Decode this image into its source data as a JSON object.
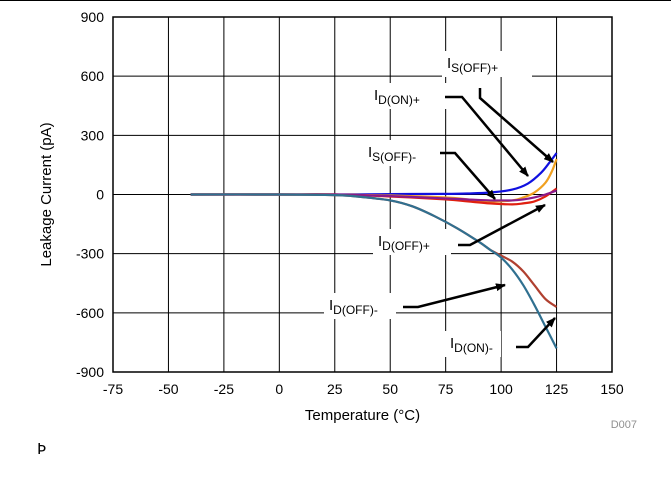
{
  "chart_data": {
    "type": "line",
    "title": "",
    "xlabel": "Temperature (°C)",
    "ylabel": "Leakage Current (pA)",
    "xlim": [
      -75,
      150
    ],
    "ylim": [
      -900,
      900
    ],
    "xticks": [
      -75,
      -50,
      -25,
      0,
      25,
      50,
      75,
      100,
      125,
      150
    ],
    "yticks": [
      900,
      600,
      300,
      0,
      -300,
      -600,
      -900
    ],
    "grid": true,
    "legend": "none",
    "series": [
      {
        "name": "I_S(OFF)+",
        "color": "#1010e0",
        "x": [
          -40,
          0,
          25,
          50,
          75,
          85,
          95,
          105,
          112,
          118,
          122,
          125
        ],
        "y": [
          0,
          0,
          0,
          2,
          3,
          5,
          10,
          25,
          55,
          110,
          165,
          210
        ]
      },
      {
        "name": "I_D(ON)+",
        "color": "#f0a020",
        "x": [
          -40,
          0,
          25,
          50,
          75,
          85,
          95,
          105,
          110,
          115,
          120,
          123,
          125
        ],
        "y": [
          0,
          0,
          0,
          -5,
          -15,
          -25,
          -35,
          -30,
          -15,
          10,
          60,
          120,
          180
        ]
      },
      {
        "name": "I_S(OFF)-",
        "color": "#e02010",
        "x": [
          -40,
          0,
          25,
          50,
          75,
          85,
          95,
          105,
          110,
          115,
          120,
          125
        ],
        "y": [
          0,
          0,
          0,
          -10,
          -25,
          -35,
          -45,
          -50,
          -45,
          -35,
          -10,
          30
        ]
      },
      {
        "name": "I_D(OFF)+",
        "color": "#8a1a8a",
        "x": [
          -40,
          0,
          25,
          50,
          75,
          85,
          95,
          100,
          105,
          110,
          115,
          120,
          125
        ],
        "y": [
          0,
          0,
          0,
          -8,
          -20,
          -25,
          -30,
          -30,
          -30,
          -25,
          -15,
          0,
          20
        ]
      },
      {
        "name": "I_D(OFF)-",
        "color": "#b04030",
        "x": [
          -40,
          0,
          25,
          35,
          50,
          60,
          70,
          80,
          90,
          95,
          100,
          105,
          110,
          115,
          120,
          125
        ],
        "y": [
          0,
          0,
          -3,
          -10,
          -30,
          -60,
          -110,
          -170,
          -240,
          -280,
          -310,
          -340,
          -390,
          -460,
          -530,
          -570
        ]
      },
      {
        "name": "I_D(ON)-",
        "color": "#307090",
        "x": [
          -40,
          0,
          25,
          35,
          50,
          60,
          70,
          80,
          90,
          95,
          100,
          105,
          110,
          115,
          120,
          125
        ],
        "y": [
          0,
          0,
          -3,
          -10,
          -30,
          -60,
          -110,
          -170,
          -240,
          -280,
          -320,
          -380,
          -460,
          -560,
          -670,
          -780
        ]
      }
    ],
    "annotations": [
      {
        "main": "I",
        "sub": "S(OFF)+"
      },
      {
        "main": "I",
        "sub": "D(ON)+"
      },
      {
        "main": "I",
        "sub": "S(OFF)-"
      },
      {
        "main": "I",
        "sub": "D(OFF)+"
      },
      {
        "main": "I",
        "sub": "D(OFF)-"
      },
      {
        "main": "I",
        "sub": "D(ON)-"
      }
    ],
    "figure_id": "D007"
  },
  "footer_glyph": "Þ"
}
